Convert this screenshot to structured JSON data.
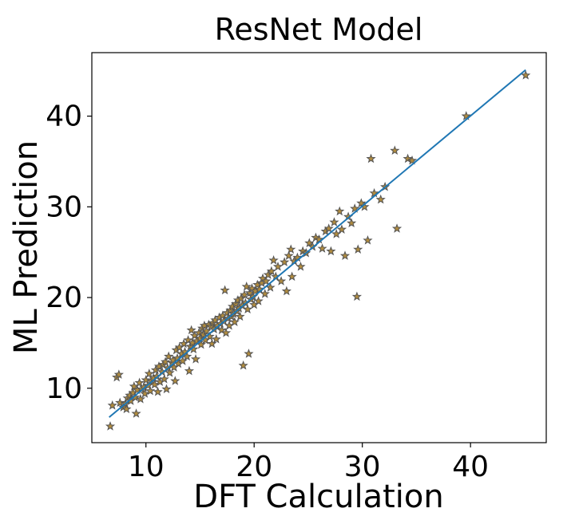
{
  "chart_data": {
    "type": "scatter",
    "title": "ResNet Model",
    "xlabel": "DFT Calculation",
    "ylabel": "ML Prediction",
    "xlim": [
      5,
      47
    ],
    "ylim": [
      4,
      47
    ],
    "xticks": [
      10,
      20,
      30,
      40
    ],
    "yticks": [
      10,
      20,
      30,
      40
    ],
    "xtick_labels": [
      "10",
      "20",
      "30",
      "40"
    ],
    "ytick_labels": [
      "10",
      "20",
      "30",
      "40"
    ],
    "grid": false,
    "marker": "star",
    "marker_face_color": "#b08b3e",
    "marker_edge_color": "#555555",
    "line_color": "#1f77b4",
    "fit_line": {
      "x": [
        6.6,
        45.1
      ],
      "y": [
        6.8,
        45.1
      ]
    },
    "points": [
      [
        6.7,
        5.8
      ],
      [
        6.9,
        8.1
      ],
      [
        7.3,
        11.2
      ],
      [
        7.5,
        11.5
      ],
      [
        7.6,
        8.4
      ],
      [
        7.9,
        7.9
      ],
      [
        8.1,
        8.3
      ],
      [
        8.2,
        7.7
      ],
      [
        8.3,
        8.9
      ],
      [
        8.5,
        9.2
      ],
      [
        8.6,
        8.6
      ],
      [
        8.8,
        9.5
      ],
      [
        8.9,
        10.2
      ],
      [
        9.0,
        9.0
      ],
      [
        9.1,
        7.2
      ],
      [
        9.2,
        9.8
      ],
      [
        9.4,
        10.6
      ],
      [
        9.5,
        8.8
      ],
      [
        9.6,
        9.9
      ],
      [
        9.8,
        10.1
      ],
      [
        9.9,
        9.4
      ],
      [
        10.0,
        10.9
      ],
      [
        10.2,
        10.3
      ],
      [
        10.3,
        11.6
      ],
      [
        10.4,
        9.7
      ],
      [
        10.5,
        10.8
      ],
      [
        10.7,
        11.1
      ],
      [
        10.8,
        10.4
      ],
      [
        10.9,
        12.0
      ],
      [
        11.0,
        11.3
      ],
      [
        11.1,
        9.6
      ],
      [
        11.2,
        12.4
      ],
      [
        11.3,
        10.7
      ],
      [
        11.5,
        11.8
      ],
      [
        11.6,
        12.6
      ],
      [
        11.7,
        11.0
      ],
      [
        11.8,
        12.9
      ],
      [
        11.9,
        9.9
      ],
      [
        12.0,
        12.2
      ],
      [
        12.1,
        13.5
      ],
      [
        12.2,
        11.7
      ],
      [
        12.4,
        12.8
      ],
      [
        12.5,
        13.1
      ],
      [
        12.6,
        12.3
      ],
      [
        12.7,
        10.8
      ],
      [
        12.8,
        14.2
      ],
      [
        12.9,
        13.3
      ],
      [
        13.0,
        12.7
      ],
      [
        13.1,
        14.5
      ],
      [
        13.3,
        13.8
      ],
      [
        13.4,
        13.0
      ],
      [
        13.5,
        14.9
      ],
      [
        13.6,
        14.0
      ],
      [
        13.8,
        13.5
      ],
      [
        13.9,
        15.3
      ],
      [
        14.0,
        11.9
      ],
      [
        14.1,
        14.6
      ],
      [
        14.2,
        16.4
      ],
      [
        14.3,
        15.0
      ],
      [
        14.4,
        14.3
      ],
      [
        14.5,
        15.8
      ],
      [
        14.6,
        13.2
      ],
      [
        14.7,
        15.2
      ],
      [
        14.9,
        16.1
      ],
      [
        15.0,
        15.5
      ],
      [
        15.1,
        14.8
      ],
      [
        15.2,
        16.6
      ],
      [
        15.3,
        15.9
      ],
      [
        15.4,
        16.9
      ],
      [
        15.5,
        15.3
      ],
      [
        15.6,
        16.3
      ],
      [
        15.8,
        17.0
      ],
      [
        15.9,
        15.7
      ],
      [
        16.0,
        16.8
      ],
      [
        16.1,
        14.9
      ],
      [
        16.2,
        17.2
      ],
      [
        16.3,
        16.5
      ],
      [
        16.4,
        17.5
      ],
      [
        16.5,
        15.4
      ],
      [
        16.6,
        16.9
      ],
      [
        16.8,
        17.8
      ],
      [
        16.9,
        17.1
      ],
      [
        17.0,
        16.4
      ],
      [
        17.1,
        18.0
      ],
      [
        17.2,
        17.4
      ],
      [
        17.3,
        20.8
      ],
      [
        17.4,
        16.1
      ],
      [
        17.5,
        18.3
      ],
      [
        17.6,
        17.7
      ],
      [
        17.7,
        16.9
      ],
      [
        17.8,
        18.6
      ],
      [
        17.9,
        17.9
      ],
      [
        18.0,
        19.0
      ],
      [
        18.1,
        18.2
      ],
      [
        18.2,
        17.3
      ],
      [
        18.3,
        19.3
      ],
      [
        18.4,
        18.5
      ],
      [
        18.5,
        19.7
      ],
      [
        18.6,
        18.8
      ],
      [
        18.7,
        17.9
      ],
      [
        18.8,
        19.9
      ],
      [
        18.9,
        19.1
      ],
      [
        19.0,
        12.5
      ],
      [
        19.1,
        20.3
      ],
      [
        19.2,
        19.4
      ],
      [
        19.3,
        21.2
      ],
      [
        19.4,
        18.7
      ],
      [
        19.5,
        13.8
      ],
      [
        19.6,
        20.5
      ],
      [
        19.7,
        19.8
      ],
      [
        19.8,
        21.0
      ],
      [
        19.9,
        20.1
      ],
      [
        20.0,
        19.2
      ],
      [
        20.1,
        20.7
      ],
      [
        20.3,
        21.4
      ],
      [
        20.4,
        19.6
      ],
      [
        20.5,
        20.9
      ],
      [
        20.7,
        21.6
      ],
      [
        20.8,
        22.1
      ],
      [
        21.0,
        20.4
      ],
      [
        21.1,
        21.8
      ],
      [
        21.3,
        22.5
      ],
      [
        21.5,
        21.1
      ],
      [
        21.6,
        22.9
      ],
      [
        21.8,
        24.1
      ],
      [
        22.0,
        22.3
      ],
      [
        22.2,
        23.4
      ],
      [
        22.5,
        21.8
      ],
      [
        22.8,
        23.9
      ],
      [
        23.0,
        20.7
      ],
      [
        23.2,
        24.6
      ],
      [
        23.4,
        25.3
      ],
      [
        23.5,
        22.3
      ],
      [
        23.7,
        24.0
      ],
      [
        24.0,
        24.4
      ],
      [
        24.3,
        23.4
      ],
      [
        24.5,
        25.1
      ],
      [
        24.8,
        24.9
      ],
      [
        25.1,
        26.0
      ],
      [
        25.4,
        25.6
      ],
      [
        25.7,
        26.6
      ],
      [
        26.0,
        26.4
      ],
      [
        26.3,
        25.4
      ],
      [
        26.6,
        27.3
      ],
      [
        26.9,
        27.6
      ],
      [
        27.1,
        25.1
      ],
      [
        27.4,
        28.3
      ],
      [
        27.6,
        27.0
      ],
      [
        27.9,
        29.5
      ],
      [
        28.1,
        27.5
      ],
      [
        28.4,
        24.6
      ],
      [
        28.7,
        28.9
      ],
      [
        29.0,
        28.2
      ],
      [
        29.3,
        29.8
      ],
      [
        29.5,
        20.1
      ],
      [
        29.6,
        25.3
      ],
      [
        29.9,
        30.4
      ],
      [
        30.2,
        30.0
      ],
      [
        30.5,
        26.3
      ],
      [
        30.8,
        35.3
      ],
      [
        31.1,
        31.5
      ],
      [
        31.7,
        30.8
      ],
      [
        32.1,
        32.2
      ],
      [
        33.0,
        36.2
      ],
      [
        33.2,
        27.6
      ],
      [
        34.2,
        35.3
      ],
      [
        34.6,
        35.1
      ],
      [
        39.6,
        40.0
      ],
      [
        45.1,
        44.5
      ]
    ]
  }
}
